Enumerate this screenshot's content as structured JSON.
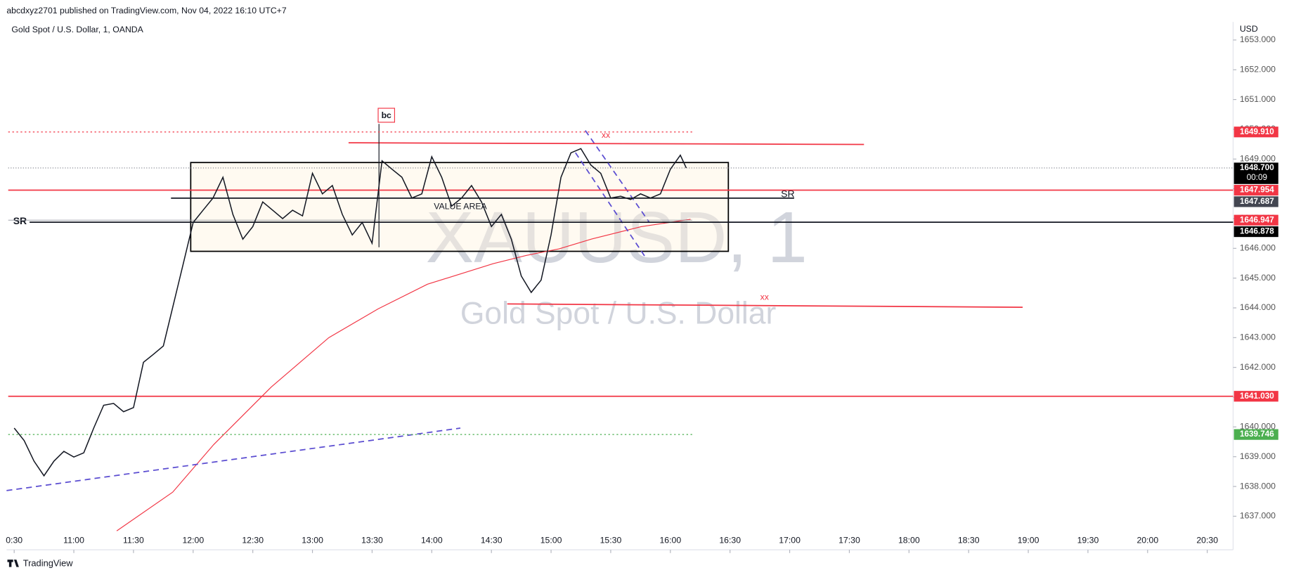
{
  "header": {
    "published": "abcdxyz2701 published on TradingView.com, Nov 04, 2022 16:10 UTC+7",
    "symbol": "Gold Spot / U.S. Dollar, 1, OANDA",
    "currency": "USD",
    "countdown": "00:09",
    "brand": "TradingView"
  },
  "watermark": {
    "ticker": "XAUUSD, 1",
    "name": "Gold Spot / U.S. Dollar"
  },
  "annotations": {
    "sr_left": "SR",
    "sr_right": "SR",
    "xx_top": "xx",
    "xx_bottom": "xx",
    "bc": "bc",
    "value_area": "VALUE AREA"
  },
  "chart_data": {
    "type": "line",
    "color": "#131722",
    "x": [
      "10:30",
      "10:35",
      "10:40",
      "10:45",
      "10:50",
      "10:55",
      "11:00",
      "11:05",
      "11:10",
      "11:15",
      "11:20",
      "11:25",
      "11:30",
      "11:35",
      "11:40",
      "11:45",
      "11:50",
      "11:55",
      "12:00",
      "12:05",
      "12:10",
      "12:15",
      "12:20",
      "12:25",
      "12:30",
      "12:35",
      "12:40",
      "12:45",
      "12:50",
      "12:55",
      "13:00",
      "13:05",
      "13:10",
      "13:15",
      "13:20",
      "13:25",
      "13:30",
      "13:35",
      "13:40",
      "13:45",
      "13:50",
      "13:55",
      "14:00",
      "14:05",
      "14:10",
      "14:15",
      "14:20",
      "14:25",
      "14:30",
      "14:35",
      "14:40",
      "14:45",
      "14:50",
      "14:55",
      "15:00",
      "15:05",
      "15:10",
      "15:15",
      "15:20",
      "15:25",
      "15:30",
      "15:35",
      "15:40",
      "15:45",
      "15:50",
      "15:55",
      "16:00",
      "16:05",
      "16:08"
    ],
    "values": [
      1639.96,
      1639.54,
      1638.85,
      1638.36,
      1638.85,
      1639.18,
      1638.99,
      1639.13,
      1639.96,
      1640.73,
      1640.79,
      1640.51,
      1640.65,
      1642.17,
      1642.44,
      1642.72,
      1644.1,
      1645.48,
      1646.87,
      1647.28,
      1647.69,
      1648.39,
      1647.14,
      1646.31,
      1646.73,
      1647.56,
      1647.28,
      1647.0,
      1647.28,
      1647.09,
      1648.52,
      1647.83,
      1648.11,
      1647.14,
      1646.45,
      1646.87,
      1646.17,
      1648.94,
      1648.66,
      1648.39,
      1647.69,
      1647.83,
      1649.08,
      1648.39,
      1647.42,
      1647.69,
      1648.11,
      1647.56,
      1646.73,
      1647.14,
      1646.31,
      1645.07,
      1644.52,
      1644.93,
      1646.45,
      1648.39,
      1649.21,
      1649.35,
      1648.8,
      1648.52,
      1647.69,
      1647.75,
      1647.64,
      1647.83,
      1647.69,
      1647.83,
      1648.66,
      1649.13,
      1648.7
    ],
    "xlim": [
      "10:27",
      "20:43"
    ],
    "xticks": [
      {
        "value": "10:30",
        "label": "0:30"
      },
      "11:00",
      "11:30",
      "12:00",
      "12:30",
      "13:00",
      "13:30",
      "14:00",
      "14:30",
      "15:00",
      "15:30",
      "16:00",
      "16:30",
      "17:00",
      "17:30",
      "18:00",
      "18:30",
      "19:00",
      "19:30",
      "20:00",
      "20:30"
    ],
    "ylim": [
      1636.37,
      1653.22
    ],
    "yticks": [
      {
        "value": 1637,
        "label": "1637.000"
      },
      {
        "value": 1638,
        "label": "1638.000"
      },
      {
        "value": 1639,
        "label": "1639.000"
      },
      {
        "value": 1640,
        "label": "1640.000"
      },
      {
        "value": 1641,
        "label": "1641.000"
      },
      {
        "value": 1642,
        "label": "1642.000"
      },
      {
        "value": 1643,
        "label": "1643.000"
      },
      {
        "value": 1644,
        "label": "1644.000"
      },
      {
        "value": 1645,
        "label": "1645.000"
      },
      {
        "value": 1646,
        "label": "1646.000"
      },
      {
        "value": 1647,
        "label": "1647.000"
      },
      {
        "value": 1648,
        "label": "1648.000"
      },
      {
        "value": 1649,
        "label": "1649.000"
      },
      {
        "value": 1650,
        "label": "1650.000"
      },
      {
        "value": 1651,
        "label": "1651.000"
      },
      {
        "value": 1652,
        "label": "1652.000"
      },
      {
        "value": 1653,
        "label": "1653.000"
      }
    ],
    "price_tags": [
      {
        "value": 1649.91,
        "label": "1649.910",
        "color": "#f23645"
      },
      {
        "value": 1648.7,
        "label": "1648.700",
        "color": "#000000"
      },
      {
        "value": 1647.954,
        "label": "1647.954",
        "color": "#f23645"
      },
      {
        "value": 1647.687,
        "label": "1647.687",
        "color": "#434651"
      },
      {
        "value": 1646.947,
        "label": "1646.947",
        "color": "#f23645"
      },
      {
        "value": 1646.878,
        "label": "1646.878",
        "color": "#000000"
      },
      {
        "value": 1641.03,
        "label": "1641.030",
        "color": "#f23645"
      },
      {
        "value": 1639.746,
        "label": "1639.746",
        "color": "#4caf50"
      }
    ]
  }
}
